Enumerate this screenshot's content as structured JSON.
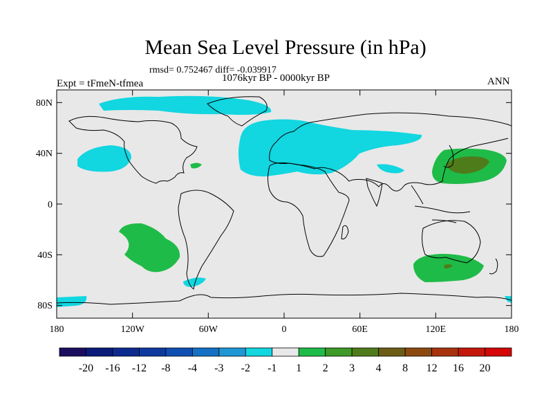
{
  "title": "Mean Sea Level Pressure (in hPa)",
  "stats_text": "rmsd= 0.752467  diff= -0.039917",
  "period_text": "1076kyr BP - 0000kyr BP",
  "experiment_text": "Expt = tFmeN-tfmea",
  "season_text": "ANN",
  "map": {
    "projection": "cylindrical-equidistant",
    "lon_range": [
      -180,
      180
    ],
    "lat_range": [
      -90,
      90
    ],
    "ocean_land_fill": "#e8e8e8",
    "x_tick_labels": [
      "180",
      "120W",
      "60W",
      "0",
      "60E",
      "120E",
      "180"
    ],
    "y_tick_labels": [
      "80N",
      "40N",
      "0",
      "40S",
      "80S"
    ]
  },
  "colorbar": {
    "labels": [
      "-20",
      "-16",
      "-12",
      "-8",
      "-4",
      "-3",
      "-2",
      "-1",
      "1",
      "2",
      "3",
      "4",
      "8",
      "12",
      "16",
      "20"
    ],
    "colors": [
      "#1a0e5e",
      "#0b1c7a",
      "#0d2b8f",
      "#0e3aa0",
      "#0f4fb2",
      "#1470c4",
      "#1f97d6",
      "#12d6e0",
      "#e8e8e8",
      "#1fbb48",
      "#3d9a26",
      "#4f7c1a",
      "#6b5e14",
      "#8c4a12",
      "#a8320e",
      "#c4180a",
      "#d40606"
    ]
  }
}
